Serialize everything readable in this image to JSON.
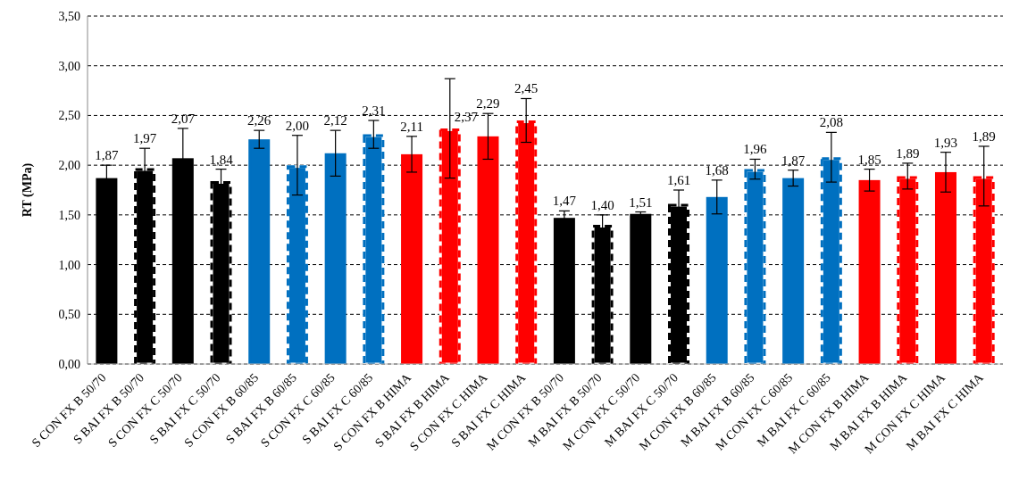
{
  "chart_data": {
    "type": "bar",
    "ylabel": "RT (MPa)",
    "categories": [
      "S CON FX B 50/70",
      "S BAI FX B 50/70",
      "S CON FX C 50/70",
      "S BAI FX C 50/70",
      "S CON FX B 60/85",
      "S BAI FX B 60/85",
      "S CON FX C 60/85",
      "S BAI FX C 60/85",
      "S CON FX B HIMA",
      "S BAI FX B HIMA",
      "S CON FX C HIMA",
      "S BAI FX C HIMA",
      "M CON FX B 50/70",
      "M BAI FX B 50/70",
      "M CON FX C 50/70",
      "M BAI FX C 50/70",
      "M CON FX B 60/85",
      "M BAI FX B 60/85",
      "M CON FX C 60/85",
      "M BAI FX C 60/85",
      "M CON FX B HIMA",
      "M BAI FX B HIMA",
      "M CON FX C HIMA",
      "M BAI FX C HIMA"
    ],
    "series": [
      {
        "line_style": "solid",
        "colors": [
          "#000000",
          null,
          "#000000",
          null,
          "#0070c0",
          null,
          "#0070c0",
          null,
          "#ff0000",
          null,
          "#ff0000",
          null,
          null,
          null,
          null,
          null,
          null,
          null,
          null,
          null,
          null,
          null,
          null,
          null
        ],
        "values": [
          1.87,
          null,
          2.07,
          null,
          2.26,
          null,
          2.12,
          null,
          2.11,
          null,
          2.29,
          null,
          null,
          null,
          null,
          null,
          null,
          null,
          null,
          null,
          null,
          null,
          null,
          null
        ],
        "errors": [
          0.13,
          null,
          0.3,
          null,
          0.09,
          null,
          0.23,
          null,
          0.18,
          null,
          0.23,
          null,
          null,
          null,
          null,
          null,
          null,
          null,
          null,
          null,
          null,
          null,
          null,
          null
        ],
        "value_labels": [
          "1,87",
          null,
          "2,07",
          null,
          "2,26",
          null,
          "2,12",
          null,
          "2,11",
          null,
          "2,29",
          null,
          null,
          null,
          null,
          null,
          null,
          null,
          null,
          null,
          null,
          null,
          null,
          null
        ]
      },
      {
        "line_style": "dashed",
        "colors": [
          null,
          "#000000",
          null,
          "#000000",
          null,
          "#0070c0",
          null,
          "#0070c0",
          null,
          "#ff0000",
          null,
          "#ff0000",
          null,
          null,
          null,
          null,
          null,
          null,
          null,
          null,
          null,
          null,
          null,
          null
        ],
        "values": [
          null,
          1.97,
          null,
          1.84,
          null,
          2.0,
          null,
          2.31,
          null,
          2.37,
          null,
          2.45,
          null,
          null,
          null,
          null,
          null,
          null,
          null,
          null,
          null,
          null,
          null,
          null
        ],
        "errors": [
          null,
          0.2,
          null,
          0.12,
          null,
          0.3,
          null,
          0.14,
          null,
          0.5,
          null,
          0.22,
          null,
          null,
          null,
          null,
          null,
          null,
          null,
          null,
          null,
          null,
          null,
          null
        ],
        "value_labels": [
          null,
          "1,97",
          null,
          "1,84",
          null,
          "2,00",
          null,
          "2,31",
          null,
          "2,37",
          null,
          "2,45",
          null,
          null,
          null,
          null,
          null,
          null,
          null,
          null,
          null,
          null,
          null,
          null
        ]
      },
      {
        "line_style": "solid",
        "colors": [
          null,
          null,
          null,
          null,
          null,
          null,
          null,
          null,
          null,
          null,
          null,
          null,
          "#000000",
          null,
          "#000000",
          null,
          "#0070c0",
          null,
          "#0070c0",
          null,
          "#ff0000",
          null,
          "#ff0000",
          null
        ],
        "values": [
          null,
          null,
          null,
          null,
          null,
          null,
          null,
          null,
          null,
          null,
          null,
          null,
          1.47,
          null,
          1.51,
          null,
          1.68,
          null,
          1.87,
          null,
          1.85,
          null,
          1.93,
          null
        ],
        "errors": [
          null,
          null,
          null,
          null,
          null,
          null,
          null,
          null,
          null,
          null,
          null,
          null,
          0.07,
          null,
          0.02,
          null,
          0.17,
          null,
          0.08,
          null,
          0.11,
          null,
          0.2,
          null
        ],
        "value_labels": [
          null,
          null,
          null,
          null,
          null,
          null,
          null,
          null,
          null,
          null,
          null,
          null,
          "1,47",
          null,
          "1,51",
          null,
          "1,68",
          null,
          "1,87",
          null,
          "1,85",
          null,
          "1,93",
          null
        ]
      },
      {
        "line_style": "dashed",
        "colors": [
          null,
          null,
          null,
          null,
          null,
          null,
          null,
          null,
          null,
          null,
          null,
          null,
          null,
          "#000000",
          null,
          "#000000",
          null,
          "#0070c0",
          null,
          "#0070c0",
          null,
          "#ff0000",
          null,
          "#ff0000"
        ],
        "values": [
          null,
          null,
          null,
          null,
          null,
          null,
          null,
          null,
          null,
          null,
          null,
          null,
          null,
          1.4,
          null,
          1.61,
          null,
          1.96,
          null,
          2.08,
          null,
          1.89,
          null,
          1.89
        ],
        "errors": [
          null,
          null,
          null,
          null,
          null,
          null,
          null,
          null,
          null,
          null,
          null,
          null,
          null,
          0.1,
          null,
          0.14,
          null,
          0.1,
          null,
          0.25,
          null,
          0.13,
          null,
          0.3
        ],
        "value_labels": [
          null,
          null,
          null,
          null,
          null,
          null,
          null,
          null,
          null,
          null,
          null,
          null,
          null,
          "1,40",
          null,
          "1,61",
          null,
          "1,96",
          null,
          "2,08",
          null,
          "1,89",
          null,
          "1,89"
        ]
      }
    ],
    "ylim": [
      0,
      3.5
    ],
    "yticks": [
      {
        "value": 0,
        "label": "0,00"
      },
      {
        "value": 0.5,
        "label": "0,50"
      },
      {
        "value": 1,
        "label": "1,00"
      },
      {
        "value": 1.5,
        "label": "1,50"
      },
      {
        "value": 2,
        "label": "2,00"
      },
      {
        "value": 2.5,
        "label": "2,50"
      },
      {
        "value": 3,
        "label": "3,00"
      },
      {
        "value": 3.5,
        "label": "3,50"
      }
    ],
    "grid": "y",
    "legend": false
  }
}
